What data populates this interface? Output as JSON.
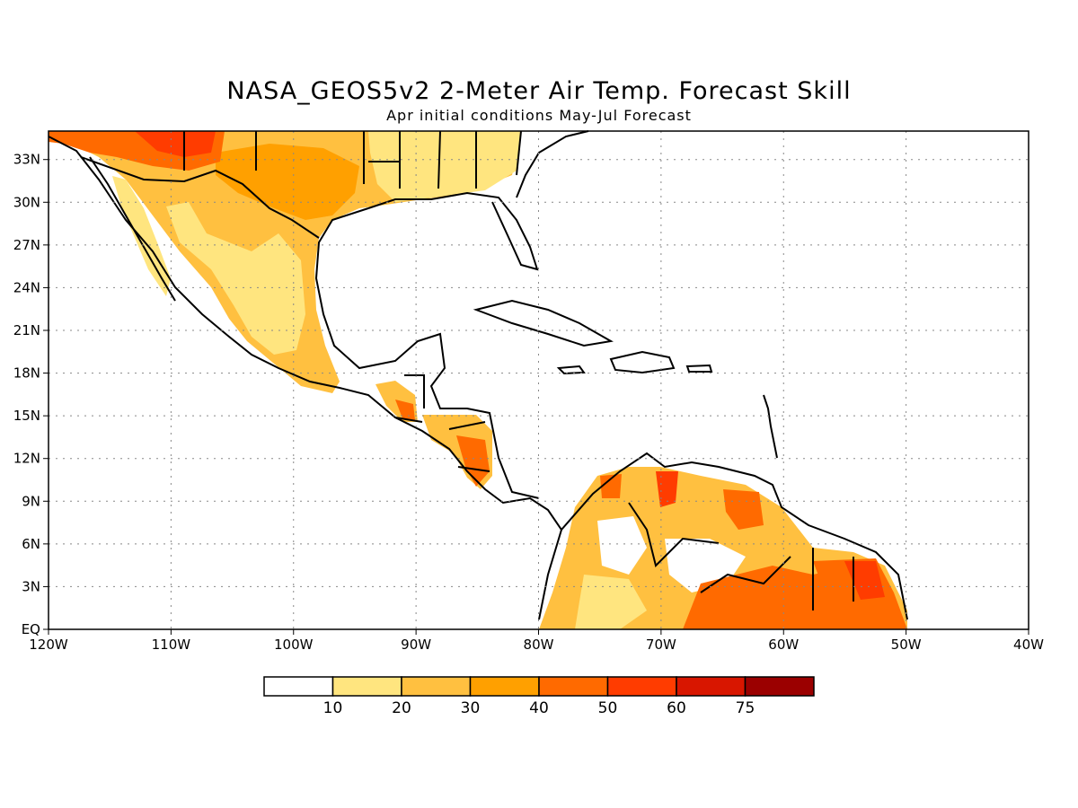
{
  "title": "NASA_GEOS5v2 2-Meter Air Temp. Forecast Skill",
  "subtitle": "Apr initial conditions  May-Jul Forecast",
  "map": {
    "lon_ticks": [
      "120W",
      "110W",
      "100W",
      "90W",
      "80W",
      "70W",
      "60W",
      "50W",
      "40W"
    ],
    "lat_ticks": [
      "EQ",
      "3N",
      "6N",
      "9N",
      "12N",
      "15N",
      "18N",
      "21N",
      "24N",
      "27N",
      "30N",
      "33N"
    ],
    "lon_range": [
      -120,
      -40
    ],
    "lat_range": [
      0,
      35
    ],
    "grid": "dotted"
  },
  "colorbar": {
    "labels": [
      "10",
      "20",
      "30",
      "40",
      "50",
      "60",
      "75"
    ],
    "colors": [
      "#ffffff",
      "#ffe57f",
      "#ffc040",
      "#ffa000",
      "#ff6a00",
      "#ff3c00",
      "#d81600",
      "#9b0000"
    ]
  },
  "colors": {
    "outline": "#000000",
    "land_default": "#ffffff"
  }
}
